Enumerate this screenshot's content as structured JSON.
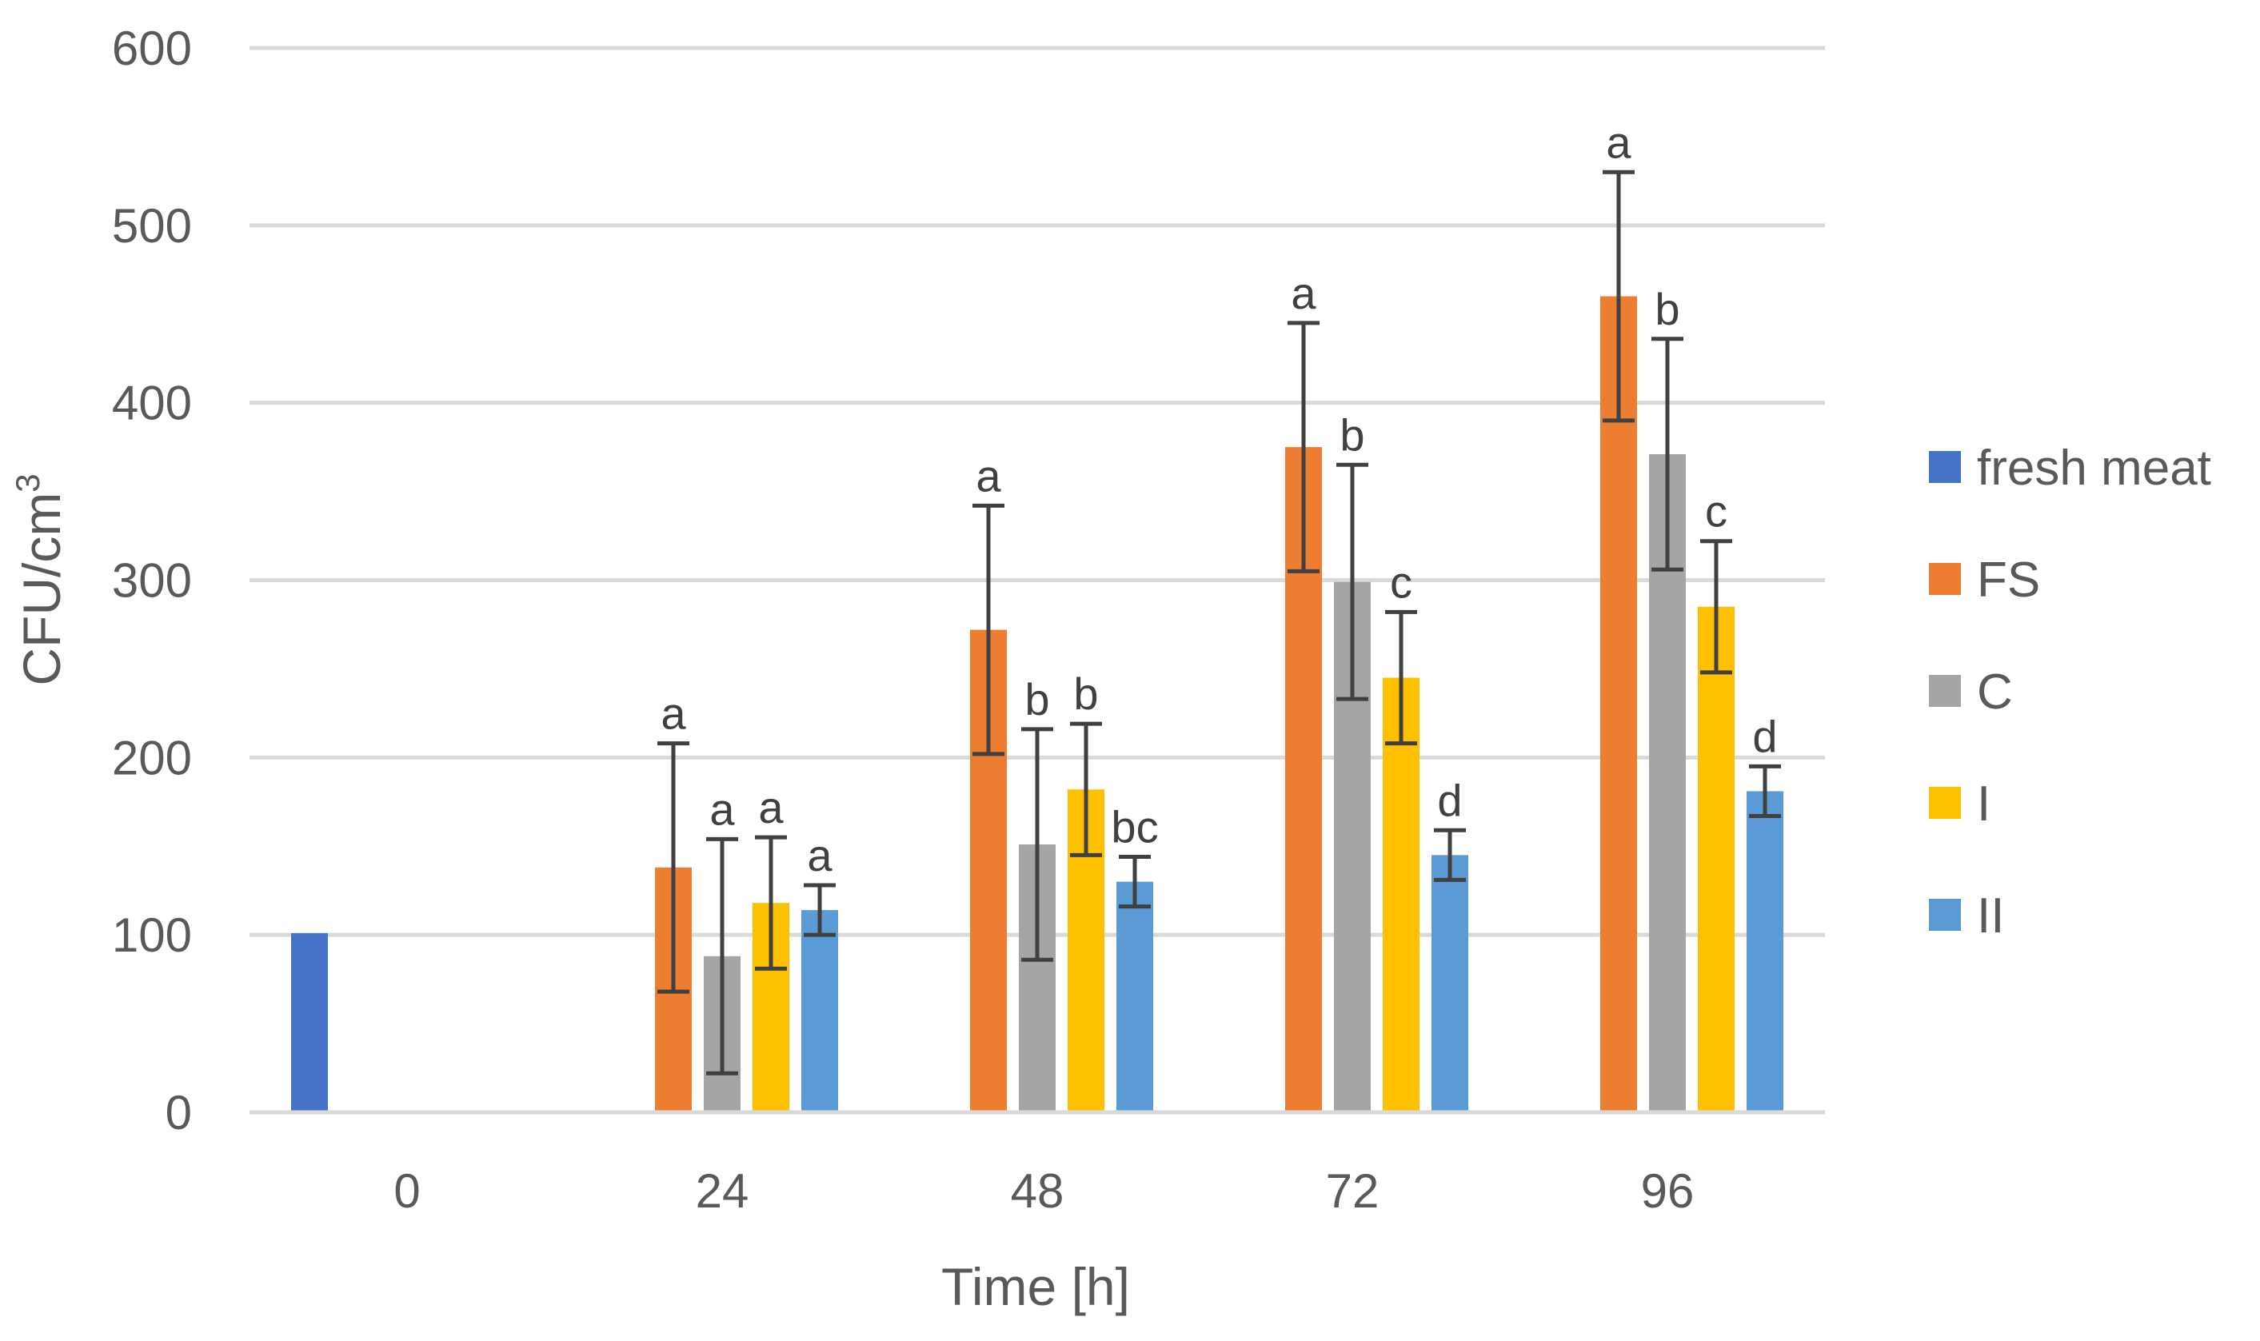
{
  "chart_data": {
    "type": "bar",
    "title": "",
    "xlabel": "Time [h]",
    "ylabel": "CFU/cm",
    "ylabel_sup": "3",
    "ylim": [
      0,
      600
    ],
    "yticks": [
      0,
      100,
      200,
      300,
      400,
      500,
      600
    ],
    "grid": true,
    "legend_position": "right",
    "categories": [
      "0",
      "24",
      "48",
      "72",
      "96"
    ],
    "series": [
      {
        "name": "fresh meat",
        "color": "#4472c4",
        "values": [
          101,
          null,
          null,
          null,
          null
        ],
        "errors": [
          null,
          null,
          null,
          null,
          null
        ],
        "labels": [
          null,
          null,
          null,
          null,
          null
        ]
      },
      {
        "name": "FS",
        "color": "#ed7d31",
        "values": [
          null,
          138,
          272,
          375,
          460
        ],
        "errors": [
          null,
          70,
          70,
          70,
          70
        ],
        "labels": [
          null,
          "a",
          "a",
          "a",
          "a"
        ]
      },
      {
        "name": "C",
        "color": "#a5a5a5",
        "values": [
          null,
          88,
          151,
          299,
          371
        ],
        "errors": [
          null,
          66,
          65,
          66,
          65
        ],
        "labels": [
          null,
          "a",
          "b",
          "b",
          "b"
        ]
      },
      {
        "name": "I",
        "color": "#ffc000",
        "values": [
          null,
          118,
          182,
          245,
          285
        ],
        "errors": [
          null,
          37,
          37,
          37,
          37
        ],
        "labels": [
          null,
          "a",
          "b",
          "c",
          "c"
        ]
      },
      {
        "name": "II",
        "color": "#5b9bd5",
        "values": [
          null,
          114,
          130,
          145,
          181
        ],
        "errors": [
          null,
          14,
          14,
          14,
          14
        ],
        "labels": [
          null,
          "a",
          "bc",
          "d",
          "d"
        ]
      }
    ]
  }
}
